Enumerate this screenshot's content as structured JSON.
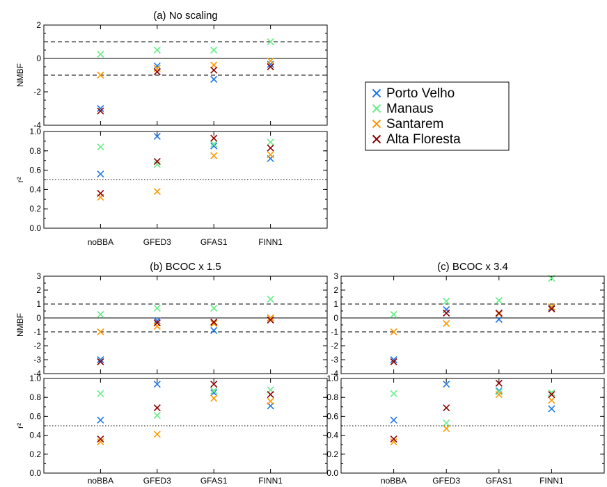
{
  "colors": {
    "Porto Velho": "#1f77e8",
    "Manaus": "#66ee88",
    "Santarem": "#ff9900",
    "Alta Floresta": "#8b0000"
  },
  "legend": {
    "placement": "right of panel (a)",
    "entries": [
      "Porto Velho",
      "Manaus",
      "Santarem",
      "Alta Floresta"
    ]
  },
  "chart_data": [
    {
      "type": "scatter",
      "title": "(a) No scaling",
      "categories": [
        "noBBA",
        "GFED3",
        "GFAS1",
        "FINN1"
      ],
      "nmbf": {
        "ylabel": "NMBF",
        "ylim": [
          -4,
          2
        ],
        "yticks": [
          "2",
          "0",
          "-2",
          "-4"
        ],
        "reference_lines": {
          "solid": [
            0
          ],
          "dashed": [
            1,
            -1
          ]
        },
        "series": [
          {
            "name": "Porto Velho",
            "values": [
              -3.0,
              -0.45,
              -1.25,
              -0.35
            ]
          },
          {
            "name": "Manaus",
            "values": [
              0.25,
              0.5,
              0.5,
              1.0
            ]
          },
          {
            "name": "Santarem",
            "values": [
              -1.0,
              -0.6,
              -0.4,
              -0.15
            ]
          },
          {
            "name": "Alta Floresta",
            "values": [
              -3.15,
              -0.8,
              -0.7,
              -0.5
            ]
          }
        ]
      },
      "r2": {
        "ylabel": "r²",
        "ylim": [
          0,
          1
        ],
        "yticks": [
          "1.0",
          "0.8",
          "0.6",
          "0.4",
          "0.2",
          "0.0"
        ],
        "reference_lines": {
          "dotted": [
            0.5
          ]
        },
        "series": [
          {
            "name": "Porto Velho",
            "values": [
              0.56,
              0.95,
              0.85,
              0.72
            ]
          },
          {
            "name": "Manaus",
            "values": [
              0.84,
              0.66,
              0.87,
              0.89
            ]
          },
          {
            "name": "Santarem",
            "values": [
              0.32,
              0.38,
              0.75,
              0.76
            ]
          },
          {
            "name": "Alta Floresta",
            "values": [
              0.36,
              0.69,
              0.93,
              0.83
            ]
          }
        ]
      }
    },
    {
      "type": "scatter",
      "title": "(b) BCOC x 1.5",
      "categories": [
        "noBBA",
        "GFED3",
        "GFAS1",
        "FINN1"
      ],
      "nmbf": {
        "ylabel": "NMBF",
        "ylim": [
          -4,
          3
        ],
        "yticks": [
          "3",
          "2",
          "1",
          "0",
          "-1",
          "-2",
          "-3",
          "-4"
        ],
        "reference_lines": {
          "solid": [
            0
          ],
          "dashed": [
            1,
            -1
          ]
        },
        "series": [
          {
            "name": "Porto Velho",
            "values": [
              -3.0,
              -0.2,
              -0.9,
              0.0
            ]
          },
          {
            "name": "Manaus",
            "values": [
              0.25,
              0.7,
              0.7,
              1.35
            ]
          },
          {
            "name": "Santarem",
            "values": [
              -1.0,
              -0.6,
              -0.4,
              0.0
            ]
          },
          {
            "name": "Alta Floresta",
            "values": [
              -3.15,
              -0.35,
              -0.3,
              -0.15
            ]
          }
        ]
      },
      "r2": {
        "ylabel": "r²",
        "ylim": [
          0,
          1
        ],
        "yticks": [
          "1.0",
          "0.8",
          "0.6",
          "0.4",
          "0.2",
          "0.0"
        ],
        "reference_lines": {
          "dotted": [
            0.5
          ]
        },
        "series": [
          {
            "name": "Porto Velho",
            "values": [
              0.56,
              0.94,
              0.85,
              0.71
            ]
          },
          {
            "name": "Manaus",
            "values": [
              0.84,
              0.61,
              0.87,
              0.88
            ]
          },
          {
            "name": "Santarem",
            "values": [
              0.33,
              0.41,
              0.79,
              0.76
            ]
          },
          {
            "name": "Alta Floresta",
            "values": [
              0.36,
              0.69,
              0.94,
              0.83
            ]
          }
        ]
      }
    },
    {
      "type": "scatter",
      "title": "(c) BCOC x 3.4",
      "categories": [
        "noBBA",
        "GFED3",
        "GFAS1",
        "FINN1"
      ],
      "nmbf": {
        "ylabel": "",
        "ylim": [
          -4,
          3
        ],
        "yticks": [
          "3",
          "2",
          "1",
          "0",
          "-1",
          "-2",
          "-3",
          "-4"
        ],
        "reference_lines": {
          "solid": [
            0
          ],
          "dashed": [
            1,
            -1
          ]
        },
        "series": [
          {
            "name": "Porto Velho",
            "values": [
              -3.0,
              0.6,
              -0.1,
              0.75
            ]
          },
          {
            "name": "Manaus",
            "values": [
              0.25,
              1.2,
              1.25,
              2.85
            ]
          },
          {
            "name": "Santarem",
            "values": [
              -1.0,
              -0.4,
              0.3,
              0.8
            ]
          },
          {
            "name": "Alta Floresta",
            "values": [
              -3.15,
              0.35,
              0.35,
              0.65
            ]
          }
        ]
      },
      "r2": {
        "ylabel": "",
        "ylim": [
          0,
          1
        ],
        "yticks": [
          "1.0",
          "0.8",
          "0.6",
          "0.4",
          "0.2",
          "0.0"
        ],
        "reference_lines": {
          "dotted": [
            0.5
          ]
        },
        "series": [
          {
            "name": "Porto Velho",
            "values": [
              0.56,
              0.94,
              0.87,
              0.68
            ]
          },
          {
            "name": "Manaus",
            "values": [
              0.84,
              0.53,
              0.86,
              0.85
            ]
          },
          {
            "name": "Santarem",
            "values": [
              0.33,
              0.47,
              0.83,
              0.77
            ]
          },
          {
            "name": "Alta Floresta",
            "values": [
              0.36,
              0.69,
              0.95,
              0.83
            ]
          }
        ]
      }
    }
  ]
}
